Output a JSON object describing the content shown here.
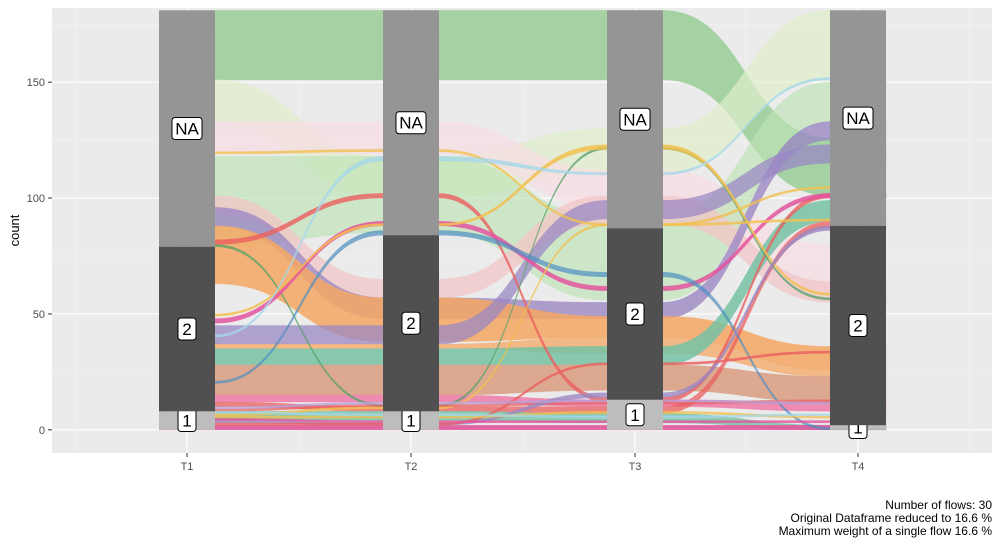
{
  "chart_data": {
    "type": "alluvial",
    "ylabel": "count",
    "xlabel": "",
    "ylim": [
      -10,
      182
    ],
    "y_ticks": [
      0,
      50,
      100,
      150
    ],
    "grid": true,
    "x": [
      "T1",
      "T2",
      "T3",
      "T4"
    ],
    "strata": [
      {
        "x": "T1",
        "values": [
          {
            "label": "1",
            "count": 8
          },
          {
            "label": "2",
            "count": 71
          },
          {
            "label": "NA",
            "count": 102
          }
        ]
      },
      {
        "x": "T2",
        "values": [
          {
            "label": "1",
            "count": 8
          },
          {
            "label": "2",
            "count": 76
          },
          {
            "label": "NA",
            "count": 97
          }
        ]
      },
      {
        "x": "T3",
        "values": [
          {
            "label": "1",
            "count": 13
          },
          {
            "label": "2",
            "count": 74
          },
          {
            "label": "NA",
            "count": 94
          }
        ]
      },
      {
        "x": "T4",
        "values": [
          {
            "label": "1",
            "count": 2
          },
          {
            "label": "2",
            "count": 86
          },
          {
            "label": "NA",
            "count": 93
          }
        ]
      }
    ],
    "flows": [
      {
        "color": "#9dcf9b",
        "opacity": 0.9,
        "y": [
          [
            151,
            181
          ],
          [
            151,
            181
          ],
          [
            151,
            181
          ],
          [
            101,
            126
          ]
        ]
      },
      {
        "color": "#dfeecb",
        "opacity": 0.7,
        "y": [
          [
            133,
            151
          ],
          [
            100,
            118
          ],
          [
            111,
            130
          ],
          [
            151,
            181
          ]
        ]
      },
      {
        "color": "#f6dde4",
        "opacity": 0.7,
        "y": [
          [
            120,
            133
          ],
          [
            119,
            133
          ],
          [
            96,
            112
          ],
          [
            60,
            80
          ]
        ]
      },
      {
        "color": "#bfe3b5",
        "opacity": 0.65,
        "y": [
          [
            79,
            118
          ],
          [
            85,
            118
          ],
          [
            56,
            92
          ],
          [
            133,
            150
          ]
        ]
      },
      {
        "color": "#f2c5c7",
        "opacity": 0.75,
        "y": [
          [
            93,
            101
          ],
          [
            57,
            65
          ],
          [
            89,
            101
          ],
          [
            55,
            64
          ]
        ]
      },
      {
        "color": "#9b88c4",
        "opacity": 0.8,
        "y": [
          [
            88,
            96
          ],
          [
            48,
            57
          ],
          [
            48,
            55
          ],
          [
            125,
            133
          ]
        ]
      },
      {
        "color": "#f4a763",
        "opacity": 0.85,
        "y": [
          [
            63,
            88
          ],
          [
            38,
            57
          ],
          [
            40,
            49
          ],
          [
            26,
            36
          ]
        ]
      },
      {
        "color": "#9b88c4",
        "opacity": 0.75,
        "y": [
          [
            37,
            45
          ],
          [
            37,
            45
          ],
          [
            91,
            99
          ],
          [
            115,
            123
          ]
        ]
      },
      {
        "color": "#f4a763",
        "opacity": 0.75,
        "y": [
          [
            35,
            37
          ],
          [
            35,
            37
          ],
          [
            33,
            40
          ],
          [
            23,
            26
          ]
        ]
      },
      {
        "color": "#76c2a5",
        "opacity": 0.85,
        "y": [
          [
            28,
            35
          ],
          [
            28,
            35
          ],
          [
            28,
            36
          ],
          [
            90,
            99
          ]
        ]
      },
      {
        "color": "#d99c7f",
        "opacity": 0.85,
        "y": [
          [
            15,
            28
          ],
          [
            15,
            28
          ],
          [
            17,
            28
          ],
          [
            12,
            23
          ]
        ]
      },
      {
        "color": "#ef7aa7",
        "opacity": 0.85,
        "y": [
          [
            12,
            15
          ],
          [
            12,
            15
          ],
          [
            10,
            13
          ],
          [
            8,
            12
          ]
        ]
      },
      {
        "color": "#eb5f5f",
        "opacity": 0.75,
        "y": [
          [
            10,
            12
          ],
          [
            8,
            10
          ],
          [
            7,
            10
          ],
          [
            87,
            90
          ]
        ]
      },
      {
        "color": "#76c2a5",
        "opacity": 0.8,
        "y": [
          [
            4,
            8
          ],
          [
            4,
            8
          ],
          [
            3,
            7
          ],
          [
            0,
            2
          ]
        ]
      },
      {
        "color": "#e2559b",
        "opacity": 0.9,
        "y": [
          [
            0,
            2
          ],
          [
            0,
            2
          ],
          [
            0,
            2
          ],
          [
            0,
            2
          ]
        ]
      },
      {
        "color": "#eb5f5f",
        "opacity": 0.8,
        "y": [
          [
            80,
            82
          ],
          [
            100,
            102
          ],
          [
            12,
            14
          ],
          [
            100,
            102
          ]
        ]
      },
      {
        "color": "#5aa36a",
        "opacity": 0.8,
        "y": [
          [
            79,
            80
          ],
          [
            10,
            11
          ],
          [
            121,
            122
          ],
          [
            56,
            57
          ]
        ]
      },
      {
        "color": "#e3559e",
        "opacity": 0.85,
        "y": [
          [
            46,
            48
          ],
          [
            88,
            90
          ],
          [
            60,
            62
          ],
          [
            100,
            102
          ]
        ]
      },
      {
        "color": "#f2c04f",
        "opacity": 0.85,
        "y": [
          [
            49,
            50
          ],
          [
            88,
            89
          ],
          [
            121,
            123
          ],
          [
            58,
            59
          ]
        ]
      },
      {
        "color": "#4d8fc1",
        "opacity": 0.7,
        "y": [
          [
            20,
            21
          ],
          [
            84,
            86
          ],
          [
            66,
            68
          ],
          [
            0,
            1
          ]
        ]
      },
      {
        "color": "#f2c04f",
        "opacity": 0.8,
        "y": [
          [
            119,
            120
          ],
          [
            120,
            121
          ],
          [
            88,
            89
          ],
          [
            104,
            105
          ]
        ]
      },
      {
        "color": "#a6d7e8",
        "opacity": 0.8,
        "y": [
          [
            40,
            41
          ],
          [
            116,
            118
          ],
          [
            110,
            111
          ],
          [
            151,
            152
          ]
        ]
      },
      {
        "color": "#f2c04f",
        "opacity": 0.8,
        "y": [
          [
            6,
            7
          ],
          [
            9,
            10
          ],
          [
            88,
            89
          ],
          [
            90,
            91
          ]
        ]
      },
      {
        "color": "#eb5f5f",
        "opacity": 0.7,
        "y": [
          [
            8,
            9
          ],
          [
            10,
            11
          ],
          [
            11,
            12
          ],
          [
            12,
            13
          ]
        ]
      },
      {
        "color": "#9b88c4",
        "opacity": 0.8,
        "y": [
          [
            3,
            4
          ],
          [
            2,
            3
          ],
          [
            14,
            16
          ],
          [
            86,
            88
          ]
        ]
      },
      {
        "color": "#eb5f5f",
        "opacity": 0.8,
        "y": [
          [
            2,
            3
          ],
          [
            2,
            3
          ],
          [
            28,
            29
          ],
          [
            33,
            34
          ]
        ]
      },
      {
        "color": "#f2c04f",
        "opacity": 0.75,
        "y": [
          [
            5,
            6
          ],
          [
            5,
            6
          ],
          [
            7,
            8
          ],
          [
            5,
            6
          ]
        ]
      },
      {
        "color": "#a6d7e8",
        "opacity": 0.75,
        "y": [
          [
            7,
            8
          ],
          [
            6,
            7
          ],
          [
            5,
            6
          ],
          [
            6,
            7
          ]
        ]
      },
      {
        "color": "#b8a0d6",
        "opacity": 0.75,
        "y": [
          [
            9,
            10
          ],
          [
            11,
            12
          ],
          [
            12,
            13
          ],
          [
            11,
            12
          ]
        ]
      },
      {
        "color": "#e2559b",
        "opacity": 0.8,
        "y": [
          [
            4,
            5
          ],
          [
            3,
            4
          ],
          [
            3,
            4
          ],
          [
            3,
            4
          ]
        ]
      }
    ]
  },
  "caption": {
    "line1": "Number of flows: 30",
    "line2": "Original Dataframe reduced to 16.6 %",
    "line3": "Maximum weight of a single flow 16.6 %"
  }
}
